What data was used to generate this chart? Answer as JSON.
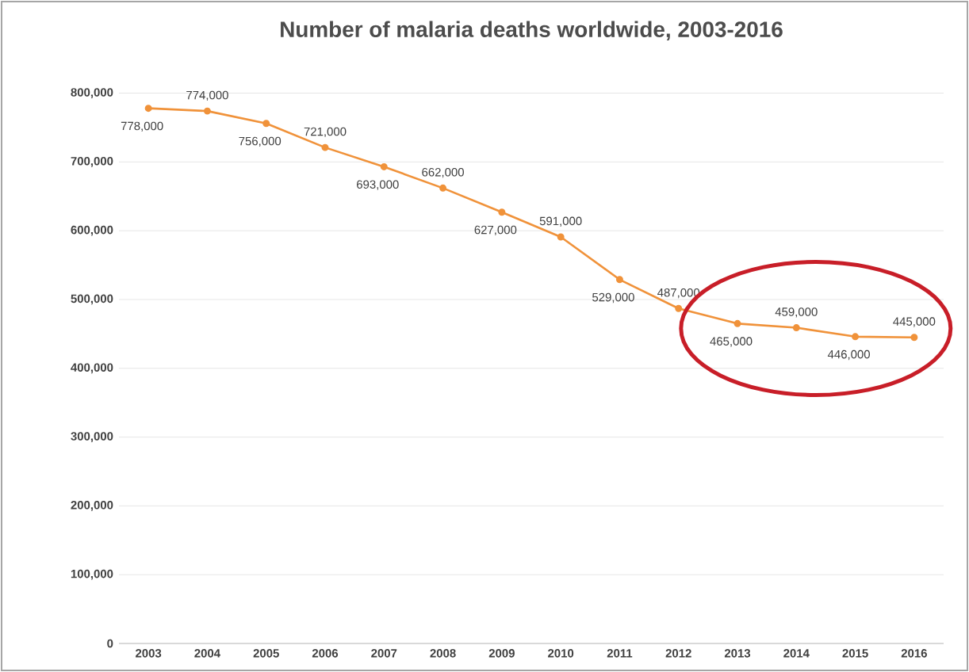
{
  "chart_data": {
    "type": "line",
    "title": "Number of malaria deaths worldwide, 2003-2016",
    "categories": [
      "2003",
      "2004",
      "2005",
      "2006",
      "2007",
      "2008",
      "2009",
      "2010",
      "2011",
      "2012",
      "2013",
      "2014",
      "2015",
      "2016"
    ],
    "values": [
      778000,
      774000,
      756000,
      721000,
      693000,
      662000,
      627000,
      591000,
      529000,
      487000,
      465000,
      459000,
      446000,
      445000
    ],
    "value_labels": [
      "778,000",
      "774,000",
      "756,000",
      "721,000",
      "693,000",
      "662,000",
      "627,000",
      "591,000",
      "529,000",
      "487,000",
      "465,000",
      "459,000",
      "446,000",
      "445,000"
    ],
    "color": "#f0923a",
    "marker": "circle",
    "line_style": "solid",
    "ylim": [
      0,
      800000
    ],
    "yticks": [
      {
        "value": 0,
        "label": "0"
      },
      {
        "value": 100000,
        "label": "100,000"
      },
      {
        "value": 200000,
        "label": "200,000"
      },
      {
        "value": 300000,
        "label": "300,000"
      },
      {
        "value": 400000,
        "label": "400,000"
      },
      {
        "value": 500000,
        "label": "500,000"
      },
      {
        "value": 600000,
        "label": "600,000"
      },
      {
        "value": 700000,
        "label": "700,000"
      },
      {
        "value": 800000,
        "label": "800,000"
      }
    ],
    "grid": "y"
  }
}
